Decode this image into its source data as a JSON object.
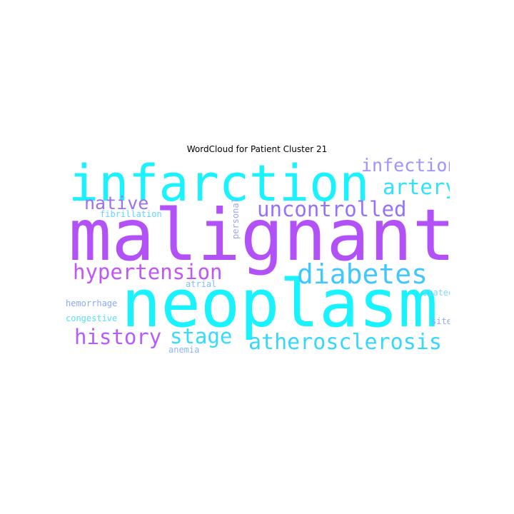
{
  "chart_data": {
    "type": "wordcloud",
    "title": "WordCloud for Patient Cluster 21",
    "words": [
      {
        "text": "malignant",
        "weight": 1.0,
        "color": "#b251f7",
        "orientation": "horizontal"
      },
      {
        "text": "neoplasm",
        "weight": 0.97,
        "color": "#19f3ff",
        "orientation": "horizontal"
      },
      {
        "text": "infarction",
        "weight": 0.78,
        "color": "#19f3ff",
        "orientation": "horizontal"
      },
      {
        "text": "diabetes",
        "weight": 0.46,
        "color": "#40c7ff",
        "orientation": "horizontal"
      },
      {
        "text": "hypertension",
        "weight": 0.38,
        "color": "#c154fb",
        "orientation": "horizontal"
      },
      {
        "text": "atherosclerosis",
        "weight": 0.37,
        "color": "#35d7ff",
        "orientation": "horizontal"
      },
      {
        "text": "uncontrolled",
        "weight": 0.36,
        "color": "#9670ff",
        "orientation": "horizontal"
      },
      {
        "text": "history",
        "weight": 0.36,
        "color": "#b45cff",
        "orientation": "horizontal"
      },
      {
        "text": "stage",
        "weight": 0.36,
        "color": "#34dcff",
        "orientation": "horizontal"
      },
      {
        "text": "artery",
        "weight": 0.32,
        "color": "#2de3ff",
        "orientation": "horizontal"
      },
      {
        "text": "infection",
        "weight": 0.3,
        "color": "#9e93ff",
        "orientation": "horizontal"
      },
      {
        "text": "native",
        "weight": 0.3,
        "color": "#9c6ff5",
        "orientation": "horizontal"
      },
      {
        "text": "hemorrhage",
        "weight": 0.14,
        "color": "#8aa9f5",
        "orientation": "horizontal"
      },
      {
        "text": "congestive",
        "weight": 0.14,
        "color": "#53deff",
        "orientation": "horizontal"
      },
      {
        "text": "fibrillation",
        "weight": 0.13,
        "color": "#66d4ff",
        "orientation": "horizontal"
      },
      {
        "text": "personal",
        "weight": 0.13,
        "color": "#9fa5f0",
        "orientation": "vertical"
      },
      {
        "text": "stated",
        "weight": 0.12,
        "color": "#82d8ff",
        "orientation": "horizontal"
      },
      {
        "text": "site",
        "weight": 0.12,
        "color": "#8fa9f0",
        "orientation": "horizontal"
      },
      {
        "text": "atrial",
        "weight": 0.12,
        "color": "#7ebdff",
        "orientation": "horizontal"
      },
      {
        "text": "anemia",
        "weight": 0.12,
        "color": "#8cb4f7",
        "orientation": "horizontal"
      }
    ]
  }
}
